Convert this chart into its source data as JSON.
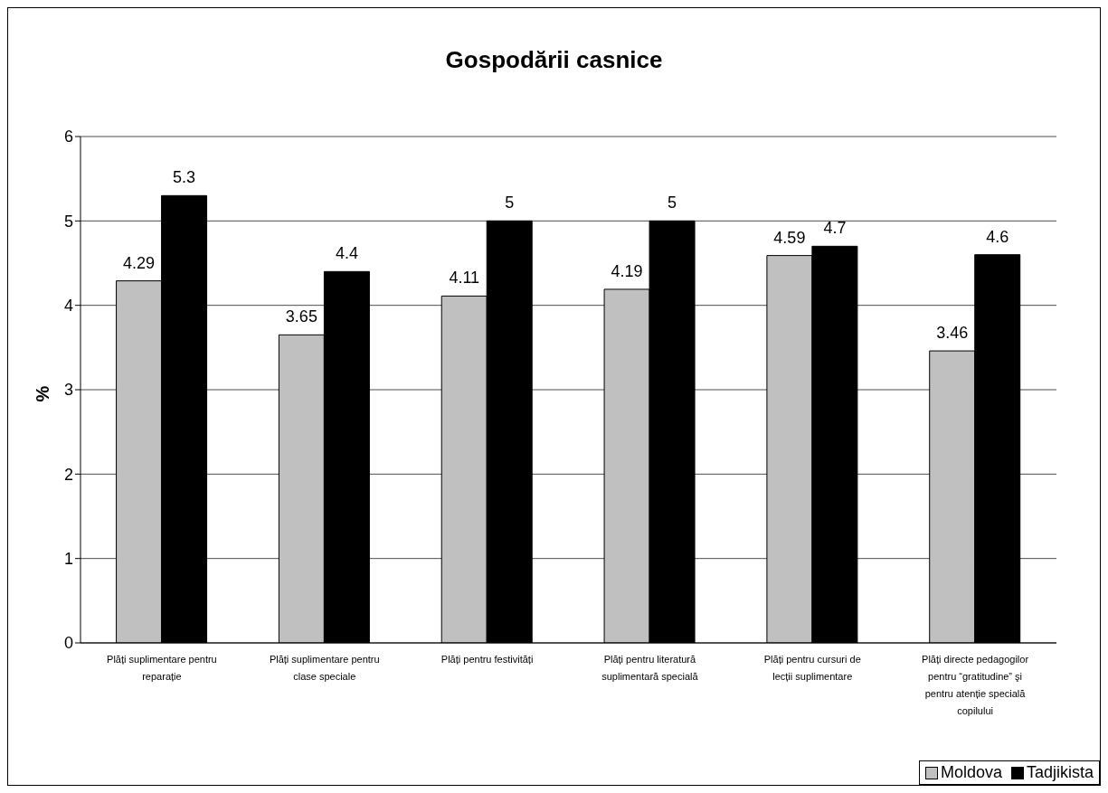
{
  "chart_data": {
    "type": "bar",
    "title": "Gospodării casnice",
    "ylabel": "%",
    "categories": [
      "Plăți suplimentare pentru reparație",
      "Plăți suplimentare pentru clase speciale",
      "Plăți pentru festivități",
      "Plăți pentru literatură suplimentară specială",
      "Plăți pentru cursuri de lecții suplimentare",
      "Plăți directe pedagogilor pentru “gratitudine” şi pentru atenție specială copilului"
    ],
    "series": [
      {
        "name": "Moldova",
        "color": "#c0c0c0",
        "values": [
          4.29,
          3.65,
          4.11,
          4.19,
          4.59,
          3.46
        ]
      },
      {
        "name": "Tadjikista",
        "color": "#000000",
        "values": [
          5.3,
          4.4,
          5,
          5,
          4.7,
          4.6
        ]
      }
    ],
    "ylim": [
      0,
      6
    ],
    "yticks": [
      0,
      1,
      2,
      3,
      4,
      5,
      6
    ],
    "grid": "y",
    "data_labels": true,
    "legend": "bottom right"
  }
}
